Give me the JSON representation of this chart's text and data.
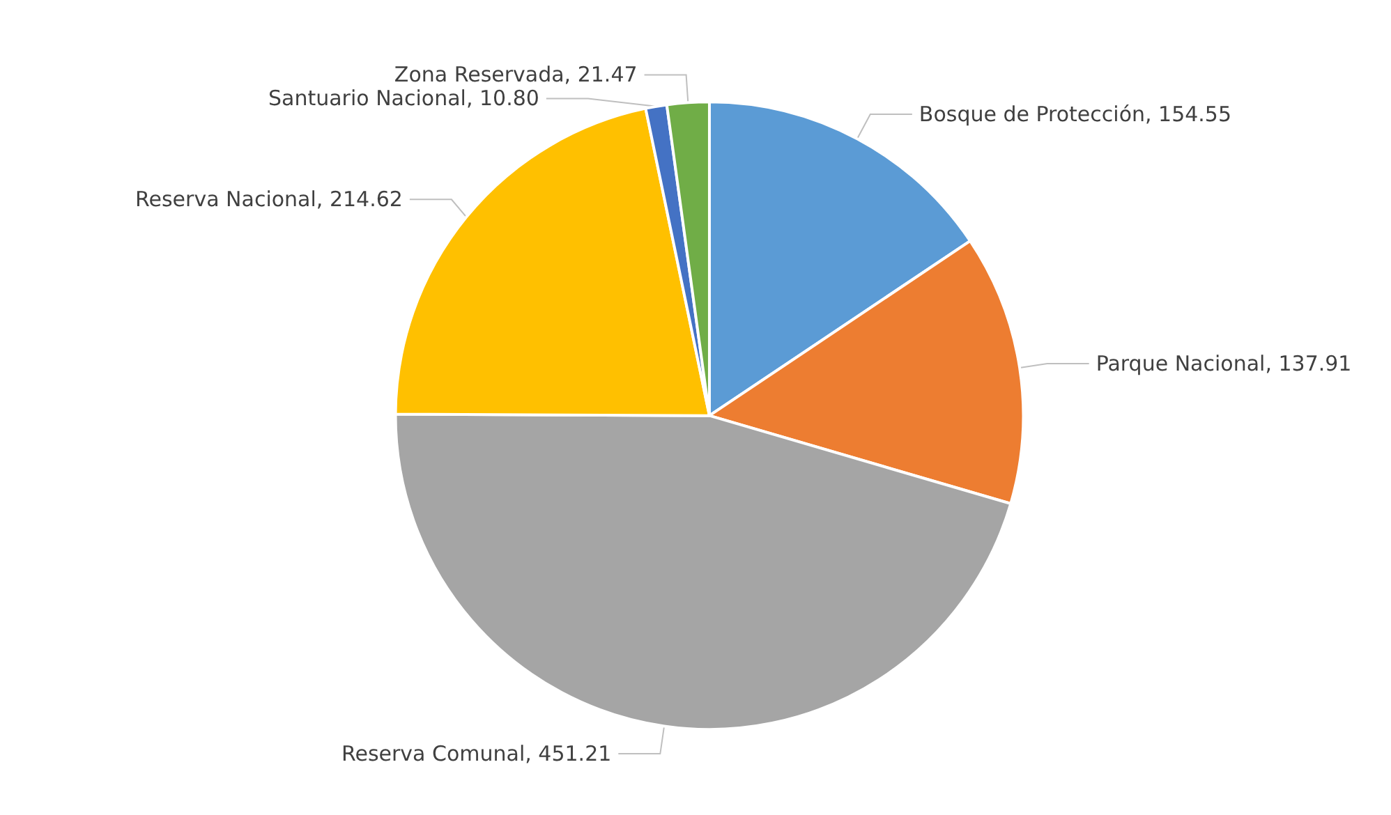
{
  "chart_data": {
    "type": "pie",
    "categories": [
      "Bosque de Protección",
      "Parque Nacional",
      "Reserva Comunal",
      "Reserva Nacional",
      "Santuario Nacional",
      "Zona Reservada"
    ],
    "values": [
      154.55,
      137.91,
      451.21,
      214.62,
      10.8,
      21.47
    ],
    "value_labels": [
      "154.55",
      "137.91",
      "451.21",
      "214.62",
      "10.80",
      "21.47"
    ],
    "colors": [
      "#5b9bd5",
      "#ed7d31",
      "#a5a5a5",
      "#ffc000",
      "#4472c4",
      "#70ad47"
    ],
    "legend": false
  }
}
